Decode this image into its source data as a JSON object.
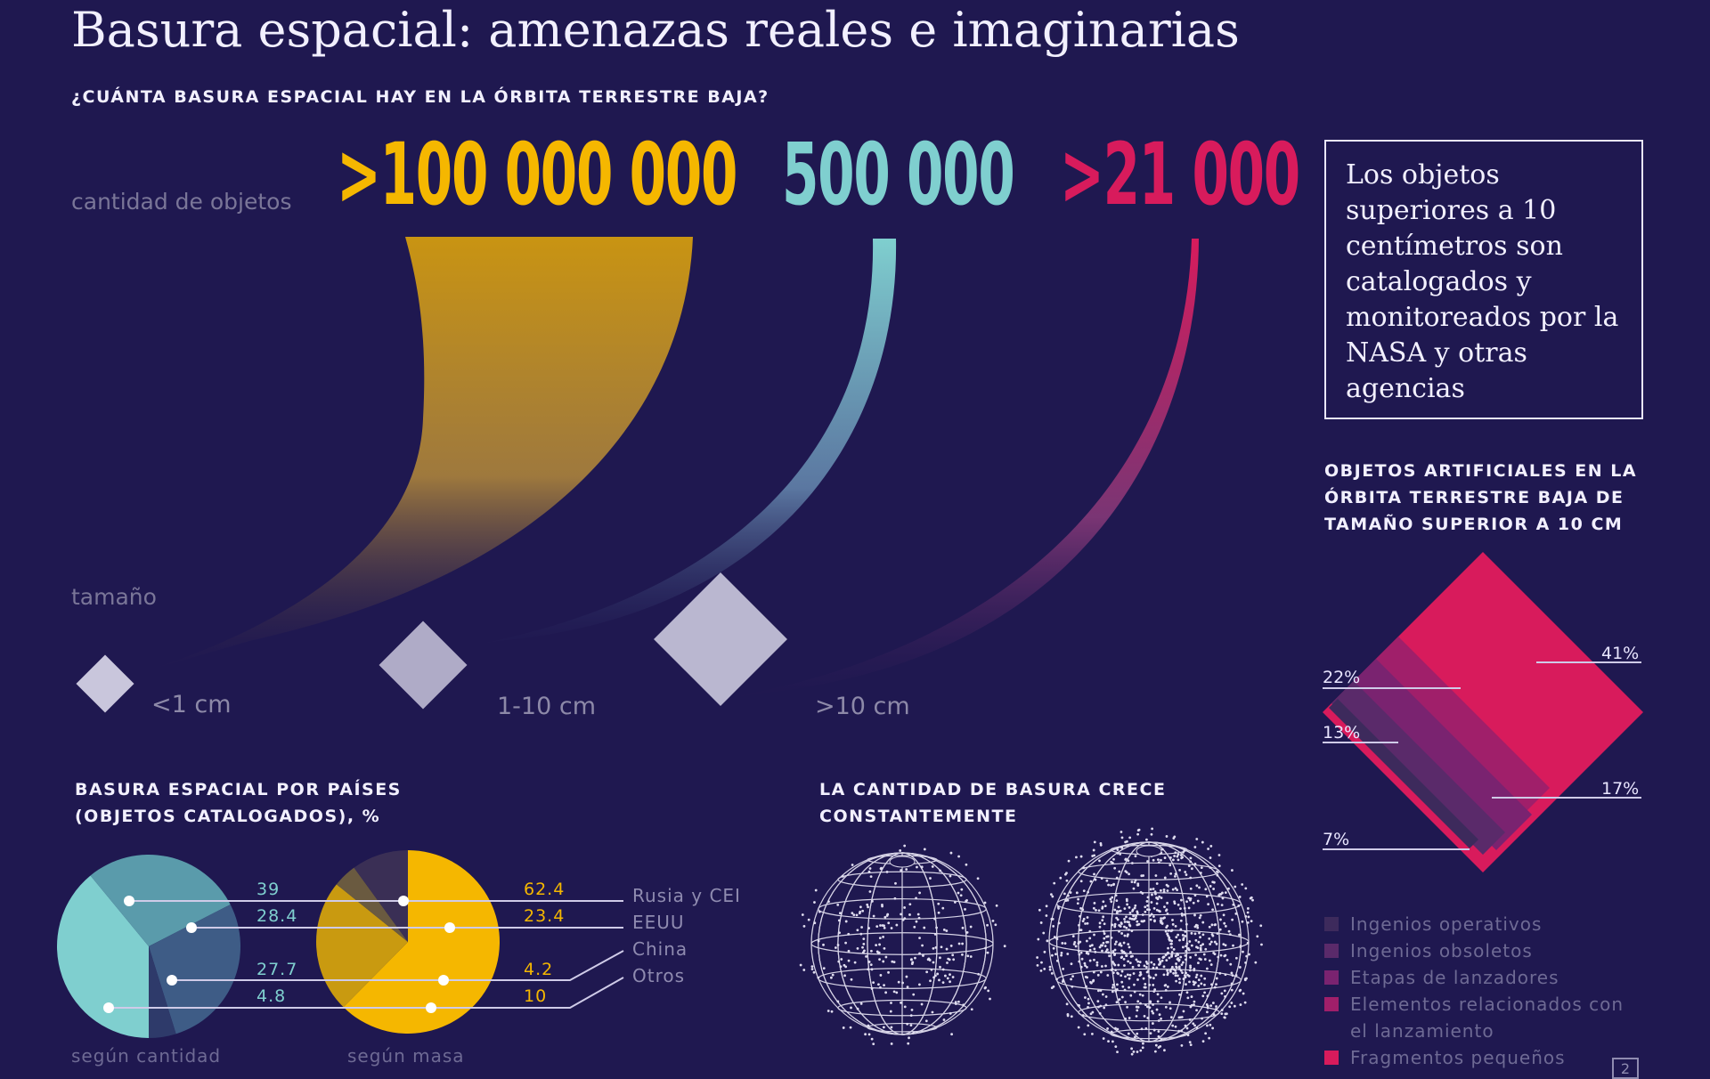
{
  "header": {
    "title": "Basura espacial: amenazas reales e imaginarias",
    "subtitle": "¿CUÁNTA BASURA ESPACIAL HAY EN LA ÓRBITA TERRESTRE BAJA?"
  },
  "quantity": {
    "axis_label_count": "cantidad de objetos",
    "axis_label_size": "tamaño",
    "groups": [
      {
        "count": ">100 000 000",
        "size": "<1 cm",
        "color": "#f5b700"
      },
      {
        "count": "500 000",
        "size": "1-10 cm",
        "color": "#7fcfcf"
      },
      {
        "count": ">21 000",
        "size": ">10 cm",
        "color": "#d81b5c"
      }
    ]
  },
  "note": {
    "text": "Los objetos superiores a 10 centímetros son catalogados y monitoreados por la NASA y otras agencias"
  },
  "artificial": {
    "heading_lines": [
      "OBJETOS ARTIFICIALES EN LA",
      "ÓRBITA TERRESTRE BAJA DE",
      "TAMAÑO SUPERIOR A 10 CM"
    ],
    "percents": {
      "p41": "41%",
      "p22": "22%",
      "p13": "13%",
      "p17": "17%",
      "p7": "7%"
    },
    "legend": [
      {
        "label": "Ingenios operativos",
        "color": "#3d2a5c"
      },
      {
        "label": "Ingenios obsoletos",
        "color": "#5a2a6a"
      },
      {
        "label": "Etapas de lanzadores",
        "color": "#7a2370"
      },
      {
        "label": "Elementos relacionados con",
        "color": "#a01f6a"
      },
      {
        "label": "el lanzamiento",
        "color": ""
      },
      {
        "label": "Fragmentos pequeños",
        "color": "#d81b5c"
      }
    ]
  },
  "countries": {
    "heading_lines": [
      "BASURA ESPACIAL POR PAÍSES",
      "(OBJETOS CATALOGADOS), %"
    ],
    "names": [
      "Rusia y CEI",
      "EEUU",
      "China",
      "Otros"
    ],
    "by_count": [
      39,
      28.4,
      27.7,
      4.8
    ],
    "by_mass": [
      62.4,
      23.4,
      4.2,
      10
    ],
    "by_count_labels": [
      "39",
      "28.4",
      "27.7",
      "4.8"
    ],
    "by_mass_labels": [
      "62.4",
      "23.4",
      "4.2",
      "10"
    ],
    "caption_count": "según cantidad",
    "caption_mass": "según masa",
    "colors_count": [
      "#7fcfcf",
      "#5a9bab",
      "#3e5c86",
      "#2e3a6a"
    ],
    "colors_mass": [
      "#f5b700",
      "#c99a10",
      "#6a5a40",
      "#3a2f55"
    ]
  },
  "growth": {
    "heading_lines": [
      "LA CANTIDAD DE BASURA CRECE",
      "CONSTANTEMENTE"
    ]
  },
  "footer": {
    "page": "2"
  }
}
